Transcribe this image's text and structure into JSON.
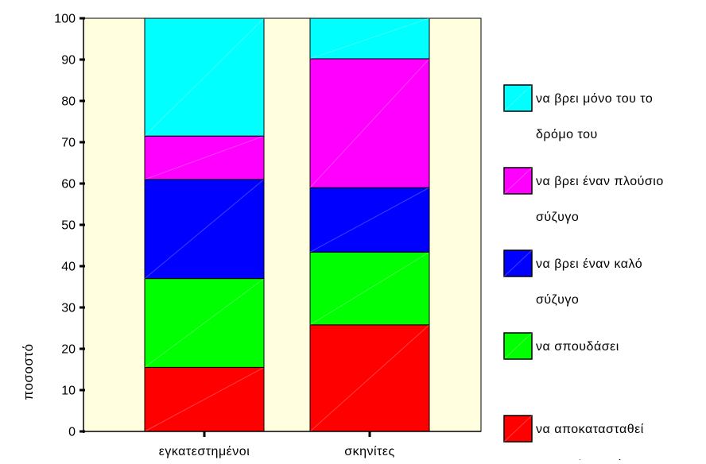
{
  "chart_data": {
    "type": "bar",
    "stacked": true,
    "percent": true,
    "ylabel": "ποσοστό",
    "xlabel": "",
    "ylim": [
      0,
      100
    ],
    "yticks": [
      0,
      10,
      20,
      30,
      40,
      50,
      60,
      70,
      80,
      90,
      100
    ],
    "categories": [
      "εγκατεστημένοι",
      "σκηνίτες"
    ],
    "series": [
      {
        "name": "να αποκατασταθεί επαγγελματικά",
        "color": "#ff0000",
        "values": [
          15.5,
          25.8
        ]
      },
      {
        "name": "να σπουδάσει",
        "color": "#00ff00",
        "values": [
          21.5,
          17.6
        ]
      },
      {
        "name": "να βρει έναν καλό σύζυγο",
        "color": "#0000ff",
        "values": [
          24.0,
          15.6
        ]
      },
      {
        "name": "να βρει έναν πλούσιο σύζυγο",
        "color": "#ff00ff",
        "values": [
          10.5,
          31.2
        ]
      },
      {
        "name": "να βρει μόνο του το δρόμο του",
        "color": "#00ffff",
        "values": [
          28.5,
          9.8
        ]
      }
    ],
    "legend": {
      "placement": "right",
      "order_top_to_bottom": [
        4,
        3,
        2,
        1,
        0
      ],
      "lines": [
        [
          "να βρει μόνο του το",
          "δρόμο του"
        ],
        [
          "να βρει έναν πλούσιο",
          "σύζυγο"
        ],
        [
          "να βρει έναν καλό",
          "σύζυγο"
        ],
        [
          "να σπουδάσει"
        ],
        [
          "να αποκατασταθεί",
          "επαγγελματικά"
        ]
      ]
    },
    "plot_background": "#ffffe0",
    "grid": false
  }
}
